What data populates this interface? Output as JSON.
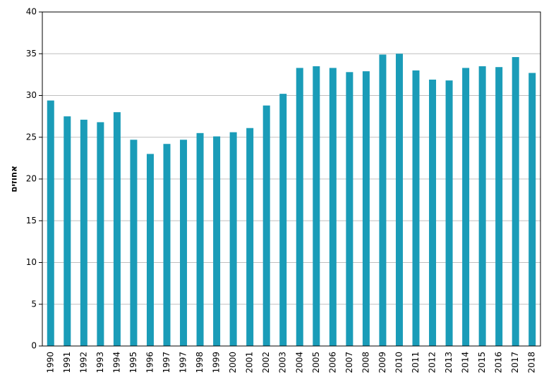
{
  "chart_data": {
    "type": "bar",
    "ylabel": "אחוזים",
    "categories": [
      "1990",
      "1991",
      "1992",
      "1993",
      "1994",
      "1995",
      "1996",
      "1997",
      "1997",
      "1998",
      "1999",
      "2000",
      "2001",
      "2002",
      "2003",
      "2004",
      "2005",
      "2006",
      "2007",
      "2008",
      "2009",
      "2010",
      "2011",
      "2012",
      "2013",
      "2014",
      "2015",
      "2016",
      "2017",
      "2018"
    ],
    "values": [
      29.4,
      27.5,
      27.1,
      26.8,
      28.0,
      24.7,
      23.0,
      24.2,
      24.7,
      25.5,
      25.1,
      25.6,
      26.1,
      28.8,
      30.2,
      33.3,
      33.5,
      33.3,
      32.8,
      32.9,
      34.9,
      35.0,
      33.0,
      31.9,
      31.8,
      33.3,
      33.5,
      33.4,
      34.6,
      32.7
    ],
    "color": "#1a9cb8",
    "ylim": [
      0,
      40
    ],
    "yticks": [
      0,
      5,
      10,
      15,
      20,
      25,
      30,
      35,
      40
    ],
    "grid": true
  }
}
